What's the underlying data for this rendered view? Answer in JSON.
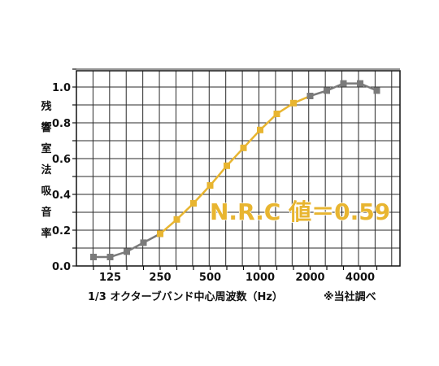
{
  "chart_data": {
    "type": "line",
    "ylabel_chars": [
      "残",
      "響",
      "室",
      "法",
      "吸",
      "音",
      "率"
    ],
    "xlabel": "1/3 オクターブバンド中心周波数（Hz）",
    "note": "※当社調べ",
    "annotation": "N.R.C 値＝0.59",
    "x_tick_labels": [
      "125",
      "250",
      "500",
      "1000",
      "2000",
      "4000"
    ],
    "y_tick_labels": [
      "0.0",
      "0.2",
      "0.4",
      "0.6",
      "0.8",
      "1.0"
    ],
    "ylim": [
      0,
      1.1
    ],
    "grid": true,
    "x_bands": [
      100,
      125,
      160,
      200,
      250,
      315,
      400,
      500,
      630,
      800,
      1000,
      1250,
      1600,
      2000,
      2500,
      3150,
      4000,
      5000
    ],
    "x_labeled": [
      125,
      250,
      500,
      1000,
      2000,
      4000
    ],
    "series": [
      {
        "color": "#7a7a7a",
        "x": [
          100,
          125,
          160,
          200,
          250
        ],
        "y": [
          0.05,
          0.05,
          0.08,
          0.13,
          0.18
        ]
      },
      {
        "color": "#e8b530",
        "x": [
          250,
          315,
          400,
          500,
          630,
          800,
          1000,
          1250,
          1600,
          2000
        ],
        "y": [
          0.18,
          0.26,
          0.35,
          0.45,
          0.56,
          0.66,
          0.76,
          0.85,
          0.91,
          0.95
        ]
      },
      {
        "color": "#7a7a7a",
        "x": [
          2000,
          2500,
          3150,
          4000,
          5000
        ],
        "y": [
          0.95,
          0.98,
          1.02,
          1.02,
          0.98
        ]
      }
    ],
    "colors": {
      "grid": "#2a2a2a",
      "bg": "#ffffff"
    }
  }
}
